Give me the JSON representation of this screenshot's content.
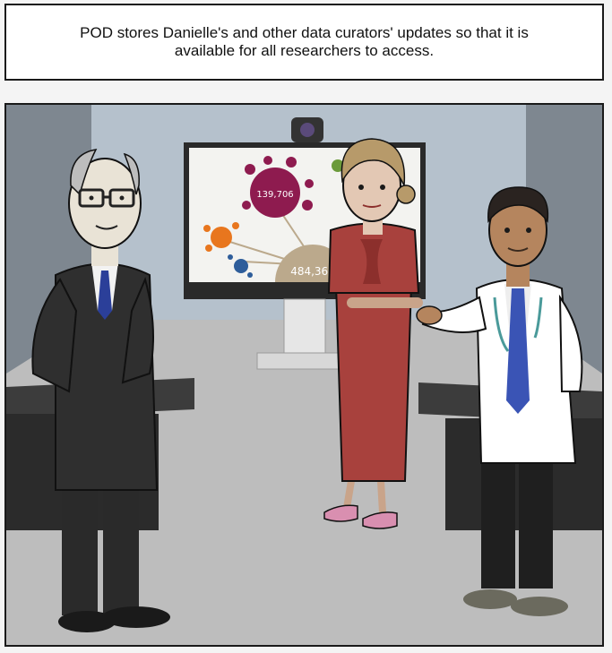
{
  "caption": {
    "text": "POD stores Danielle's and other data curators' updates so that it is available for all researchers to access."
  },
  "screen": {
    "value_top": "139,706",
    "value_bottom": "484,367"
  },
  "colors": {
    "wall": "#b5c1cc",
    "floor": "#bdbdbd",
    "dress": "#a8413d",
    "suit": "#2f2f2f",
    "tie": "#2b3f99",
    "bubble_purple": "#8e1b4f",
    "bubble_orange": "#e8761e",
    "bubble_tan": "#bba98c"
  }
}
